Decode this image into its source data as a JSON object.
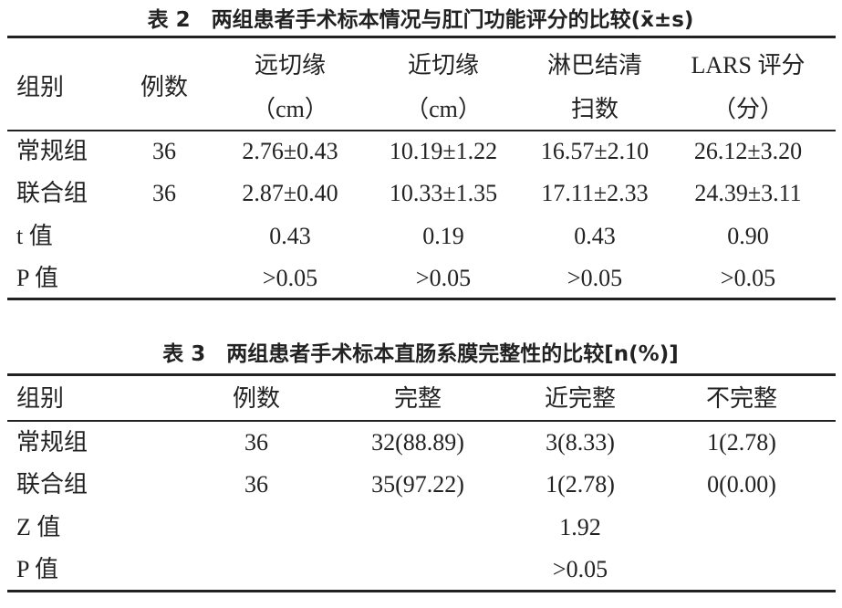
{
  "table2": {
    "title": "表 2　两组患者手术标本情况与肛门功能评分的比较(x̄±s)",
    "header": [
      [
        "组别"
      ],
      [
        "例数"
      ],
      [
        "远切缘",
        "（cm）"
      ],
      [
        "近切缘",
        "（cm）"
      ],
      [
        "淋巴结清",
        "扫数"
      ],
      [
        "LARS 评分",
        "（分）"
      ]
    ],
    "rows": [
      {
        "label": "常规组",
        "n": "36",
        "values": [
          "2.76±0.43",
          "10.19±1.22",
          "16.57±2.10",
          "26.12±3.20"
        ]
      },
      {
        "label": "联合组",
        "n": "36",
        "values": [
          "2.87±0.40",
          "10.33±1.35",
          "17.11±2.33",
          "24.39±3.11"
        ]
      },
      {
        "label": "t 值",
        "values": [
          "0.43",
          "0.19",
          "0.43",
          "0.90"
        ]
      },
      {
        "label": "P 值",
        "values": [
          ">0.05",
          ">0.05",
          ">0.05",
          ">0.05"
        ]
      }
    ]
  },
  "table3": {
    "title": "表 3　两组患者手术标本直肠系膜完整性的比较[n(%)]",
    "header": [
      "组别",
      "例数",
      "完整",
      "近完整",
      "不完整"
    ],
    "rows": [
      {
        "label": "常规组",
        "n": "36",
        "values": [
          "32(88.89)",
          "3(8.33)",
          "1(2.78)"
        ]
      },
      {
        "label": "联合组",
        "n": "36",
        "values": [
          "35(97.22)",
          "1(2.78)",
          "0(0.00)"
        ]
      },
      {
        "label": "Z 值",
        "value": "1.92"
      },
      {
        "label": "P 值",
        "value": ">0.05"
      }
    ]
  }
}
